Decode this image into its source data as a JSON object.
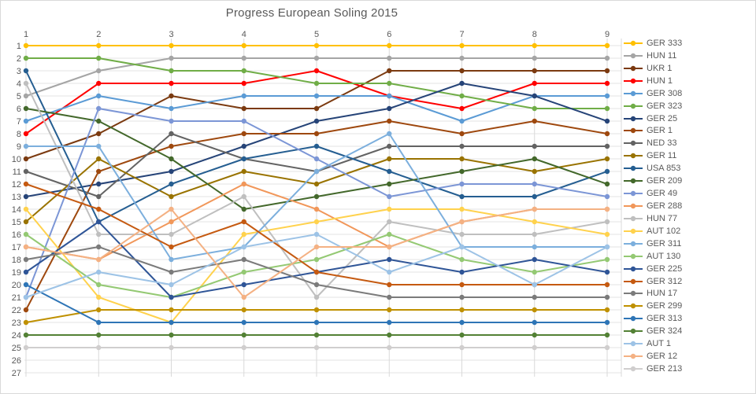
{
  "chart_data": {
    "type": "line",
    "title": "Progress European Soling 2015",
    "xlabel": "",
    "ylabel": "",
    "x_labels": [
      "1",
      "2",
      "3",
      "4",
      "5",
      "6",
      "7",
      "8",
      "9"
    ],
    "y_labels": [
      "1",
      "2",
      "3",
      "4",
      "5",
      "6",
      "7",
      "8",
      "9",
      "10",
      "11",
      "12",
      "13",
      "14",
      "15",
      "16",
      "17",
      "18",
      "19",
      "20",
      "21",
      "22",
      "23",
      "24",
      "25",
      "26",
      "27"
    ],
    "y_min": 1,
    "y_max": 27,
    "y_axis_direction": "1 at top (rank chart, inverted)",
    "x_axis_position": "top",
    "grid": "on",
    "legend_position": "right",
    "series": [
      {
        "name": "GER 333",
        "color": "#FFC000",
        "positions": [
          1,
          1,
          1,
          1,
          1,
          1,
          1,
          1,
          1
        ]
      },
      {
        "name": "HUN 11",
        "color": "#A5A5A5",
        "positions": [
          5,
          3,
          2,
          2,
          2,
          2,
          2,
          2,
          2
        ]
      },
      {
        "name": "UKR 1",
        "color": "#7B3A10",
        "positions": [
          10,
          8,
          5,
          6,
          6,
          3,
          3,
          3,
          3
        ]
      },
      {
        "name": "HUN 1",
        "color": "#FF0000",
        "positions": [
          8,
          4,
          4,
          4,
          3,
          5,
          6,
          4,
          4
        ]
      },
      {
        "name": "GER 308",
        "color": "#5B9BD5",
        "positions": [
          7,
          5,
          6,
          5,
          5,
          5,
          7,
          5,
          5
        ]
      },
      {
        "name": "GER 323",
        "color": "#70AD47",
        "positions": [
          2,
          2,
          3,
          3,
          4,
          4,
          5,
          6,
          6
        ]
      },
      {
        "name": "GER 25",
        "color": "#264478",
        "positions": [
          13,
          12,
          11,
          9,
          7,
          6,
          4,
          5,
          7
        ]
      },
      {
        "name": "GER 1",
        "color": "#9E480E",
        "positions": [
          22,
          11,
          9,
          8,
          8,
          7,
          8,
          7,
          8
        ]
      },
      {
        "name": "NED 33",
        "color": "#636363",
        "positions": [
          11,
          13,
          8,
          10,
          11,
          9,
          9,
          9,
          9
        ]
      },
      {
        "name": "GER 11",
        "color": "#997300",
        "positions": [
          15,
          10,
          13,
          11,
          12,
          10,
          10,
          11,
          10
        ]
      },
      {
        "name": "USA 853",
        "color": "#255E91",
        "positions": [
          3,
          15,
          12,
          10,
          9,
          11,
          13,
          13,
          11
        ]
      },
      {
        "name": "GER 209",
        "color": "#43682B",
        "positions": [
          6,
          7,
          10,
          14,
          13,
          12,
          11,
          10,
          12
        ]
      },
      {
        "name": "GER 49",
        "color": "#7C96D6",
        "positions": [
          21,
          6,
          7,
          7,
          10,
          13,
          12,
          12,
          13
        ]
      },
      {
        "name": "GER 288",
        "color": "#F1975A",
        "positions": [
          17,
          18,
          15,
          12,
          14,
          17,
          15,
          14,
          14
        ]
      },
      {
        "name": "HUN 77",
        "color": "#BFBFBF",
        "positions": [
          4,
          16,
          16,
          13,
          21,
          15,
          16,
          16,
          15
        ]
      },
      {
        "name": "AUT 102",
        "color": "#FFD24D",
        "positions": [
          14,
          21,
          23,
          16,
          15,
          14,
          14,
          15,
          16
        ]
      },
      {
        "name": "GER 311",
        "color": "#7CAFDD",
        "positions": [
          9,
          9,
          18,
          17,
          11,
          8,
          17,
          17,
          17
        ]
      },
      {
        "name": "AUT 130",
        "color": "#94C973",
        "positions": [
          16,
          20,
          21,
          19,
          18,
          16,
          18,
          19,
          18
        ]
      },
      {
        "name": "GER 225",
        "color": "#2F5597",
        "positions": [
          19,
          15,
          21,
          20,
          19,
          18,
          19,
          18,
          19
        ]
      },
      {
        "name": "GER 312",
        "color": "#C55A11",
        "positions": [
          12,
          14,
          17,
          15,
          19,
          20,
          20,
          20,
          20
        ]
      },
      {
        "name": "HUN 17",
        "color": "#7B7B7B",
        "positions": [
          18,
          17,
          19,
          18,
          20,
          21,
          21,
          21,
          21
        ]
      },
      {
        "name": "GER 299",
        "color": "#BF9000",
        "positions": [
          23,
          22,
          22,
          22,
          22,
          22,
          22,
          22,
          22
        ]
      },
      {
        "name": "GER 313",
        "color": "#2E75B6",
        "positions": [
          20,
          23,
          23,
          23,
          23,
          23,
          23,
          23,
          23
        ]
      },
      {
        "name": "GER 324",
        "color": "#538135",
        "positions": [
          24,
          24,
          24,
          24,
          24,
          24,
          24,
          24,
          24
        ]
      },
      {
        "name": "AUT 1",
        "color": "#9DC3E6",
        "positions": [
          21,
          19,
          20,
          17,
          16,
          19,
          17,
          20,
          17
        ]
      },
      {
        "name": "GER 12",
        "color": "#F4B183",
        "positions": [
          17,
          18,
          14,
          21,
          17,
          17,
          15,
          14,
          14
        ]
      },
      {
        "name": "GER 213",
        "color": "#D0CECE",
        "positions": [
          25,
          25,
          25,
          25,
          25,
          25,
          25,
          25,
          25
        ]
      }
    ]
  },
  "style": {
    "text_color": "#595959",
    "gridline_color": "#e3e3e3",
    "vertical_gridline_color": "#d9d9d9",
    "frame_color": "#d9d9d9",
    "background": "#ffffff"
  }
}
